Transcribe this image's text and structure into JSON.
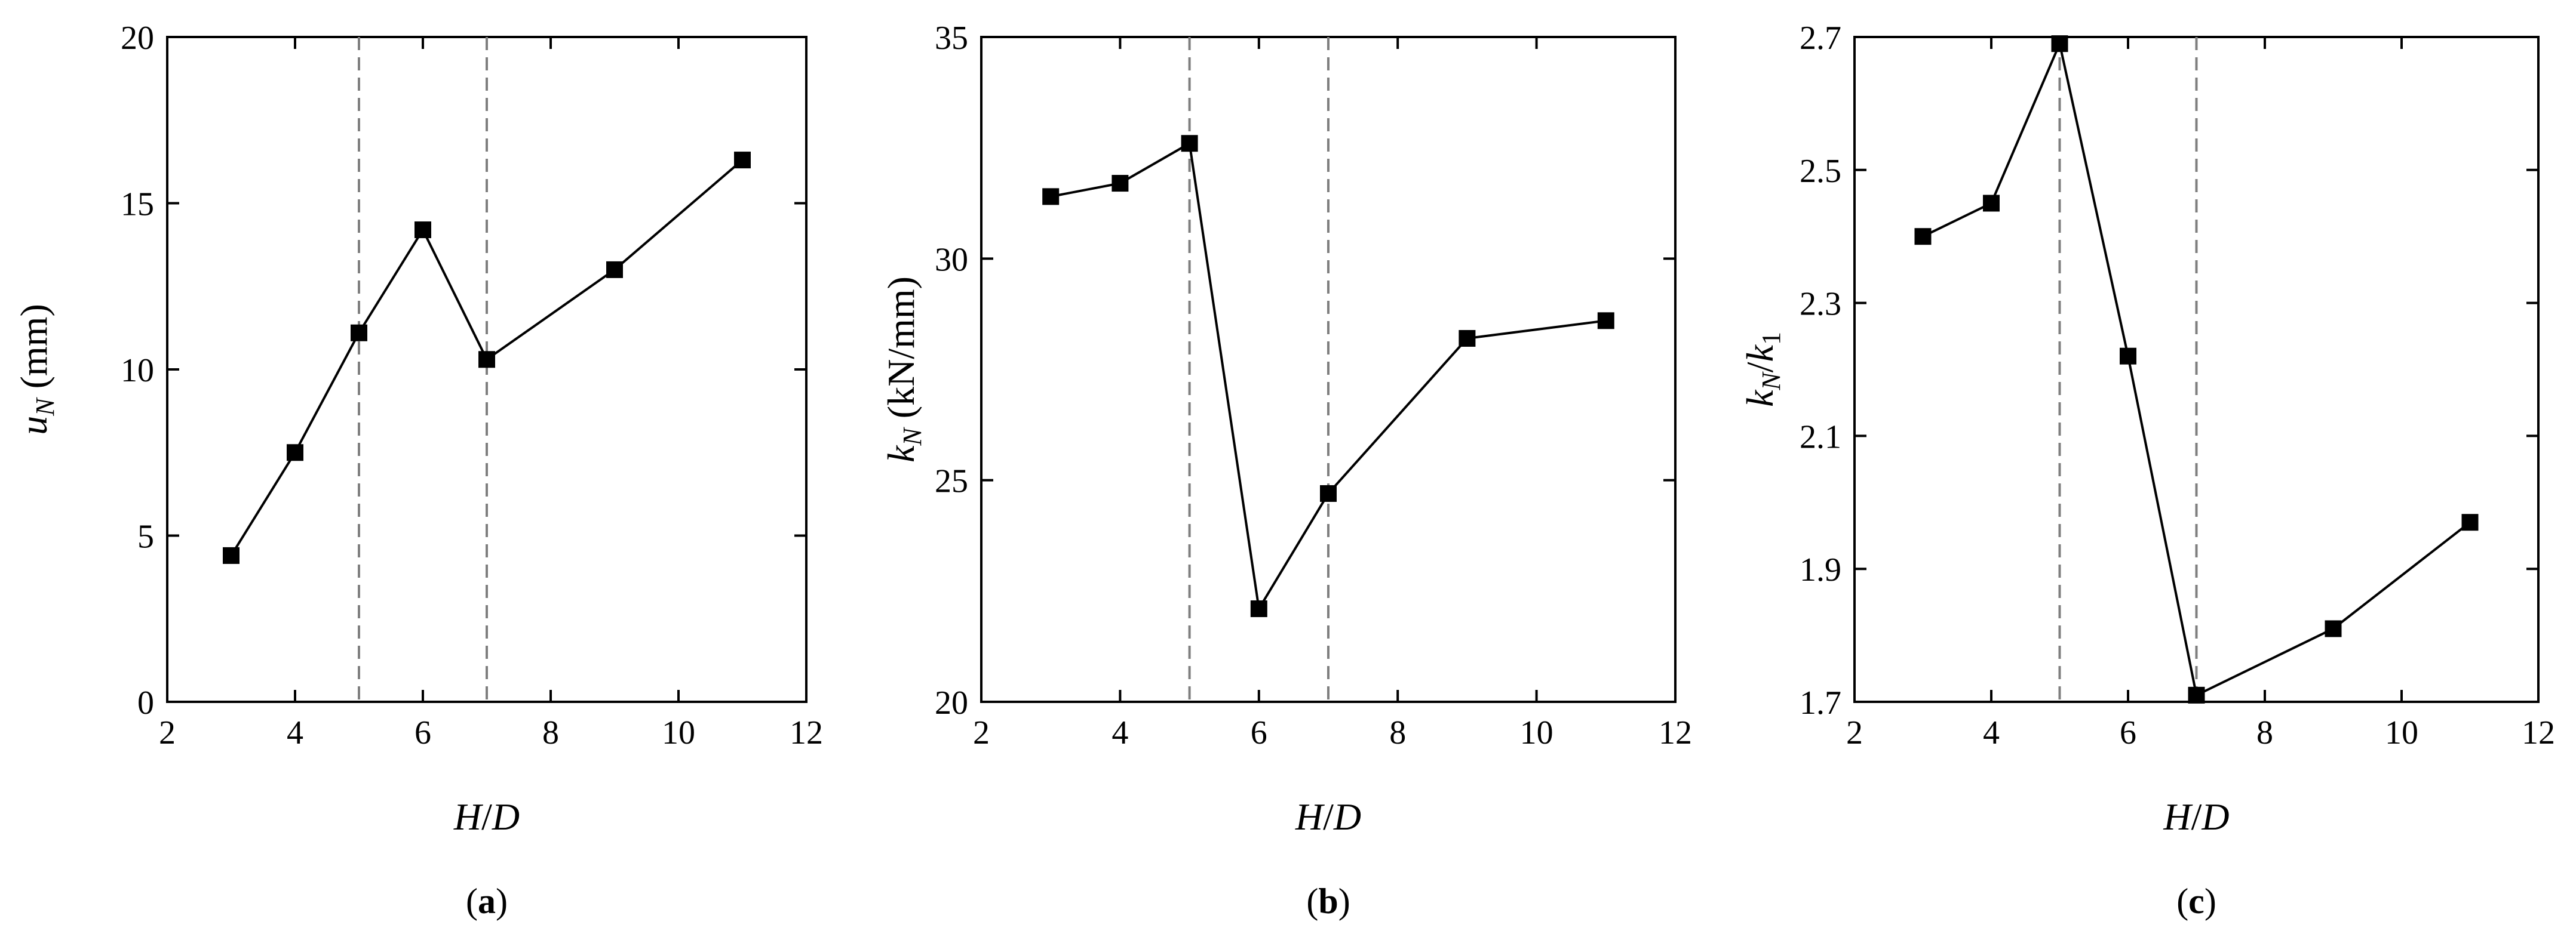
{
  "chart_data": [
    {
      "type": "line",
      "panel_label": {
        "open": "(",
        "letter": "a",
        "close": ")"
      },
      "xlabel": {
        "var1": "H",
        "slash": "/",
        "var2": "D"
      },
      "ylabel": {
        "var": "u",
        "sub": "N",
        "unit": " (mm)"
      },
      "xlim": [
        2,
        12
      ],
      "ylim": [
        0,
        20
      ],
      "xticks": [
        "2",
        "4",
        "6",
        "8",
        "10",
        "12"
      ],
      "yticks": [
        "0",
        "5",
        "10",
        "15",
        "20"
      ],
      "vlines": [
        5,
        7
      ],
      "grid": false,
      "marker": "square",
      "x": [
        3,
        4,
        5,
        6,
        7,
        9,
        11
      ],
      "y": [
        4.4,
        7.5,
        11.1,
        14.2,
        10.3,
        13.0,
        16.3
      ]
    },
    {
      "type": "line",
      "panel_label": {
        "open": "(",
        "letter": "b",
        "close": ")"
      },
      "xlabel": {
        "var1": "H",
        "slash": "/",
        "var2": "D"
      },
      "ylabel": {
        "var": "k",
        "sub": "N",
        "unit": " (kN/mm)"
      },
      "xlim": [
        2,
        12
      ],
      "ylim": [
        20,
        35
      ],
      "xticks": [
        "2",
        "4",
        "6",
        "8",
        "10",
        "12"
      ],
      "yticks": [
        "20",
        "25",
        "30",
        "35"
      ],
      "vlines": [
        5,
        7
      ],
      "grid": false,
      "marker": "square",
      "x": [
        3,
        4,
        5,
        6,
        7,
        9,
        11
      ],
      "y": [
        31.4,
        31.7,
        32.6,
        22.1,
        24.7,
        28.2,
        28.6
      ]
    },
    {
      "type": "line",
      "panel_label": {
        "open": "(",
        "letter": "c",
        "close": ")"
      },
      "xlabel": {
        "var1": "H",
        "slash": "/",
        "var2": "D"
      },
      "ylabel": {
        "var": "k",
        "sub": "N",
        "slash": "/",
        "var2": "k",
        "sub2": "1"
      },
      "xlim": [
        2,
        12
      ],
      "ylim": [
        1.7,
        2.7
      ],
      "xticks": [
        "2",
        "4",
        "6",
        "8",
        "10",
        "12"
      ],
      "yticks": [
        "1.7",
        "1.9",
        "2.1",
        "2.3",
        "2.5",
        "2.7"
      ],
      "vlines": [
        5,
        7
      ],
      "grid": false,
      "marker": "square",
      "x": [
        3,
        4,
        5,
        6,
        7,
        9,
        11
      ],
      "y": [
        2.4,
        2.45,
        2.69,
        2.22,
        1.71,
        1.81,
        1.97
      ]
    }
  ]
}
